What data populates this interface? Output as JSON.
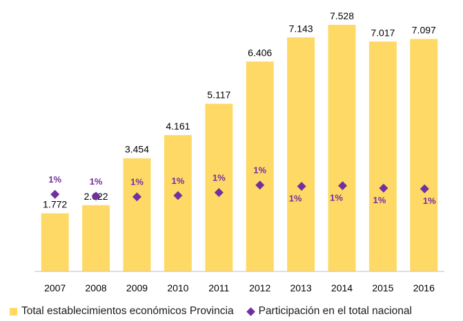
{
  "chart_data": {
    "type": "bar",
    "categories": [
      "2007",
      "2008",
      "2009",
      "2010",
      "2011",
      "2012",
      "2013",
      "2014",
      "2015",
      "2016"
    ],
    "series": [
      {
        "name": "Total establecimientos económicos Provincia",
        "type": "bar",
        "values": [
          1772,
          2022,
          3454,
          4161,
          5117,
          6406,
          7143,
          7528,
          7017,
          7097
        ],
        "labels": [
          "1.772",
          "2.022",
          "3.454",
          "4.161",
          "5.117",
          "6.406",
          "7.143",
          "7.528",
          "7.017",
          "7.097"
        ],
        "color": "#FFD966"
      },
      {
        "name": "Participación en el total nacional",
        "type": "scatter",
        "values": [
          0.0125,
          0.0122,
          0.0121,
          0.0123,
          0.0128,
          0.014,
          0.0138,
          0.0139,
          0.0135,
          0.0134
        ],
        "labels": [
          "1%",
          "1%",
          "1%",
          "1%",
          "1%",
          "1%",
          "1%",
          "1%",
          "1%",
          "1%"
        ],
        "label_position": [
          "above",
          "above",
          "above",
          "above",
          "above",
          "above",
          "below",
          "below",
          "below",
          "below"
        ],
        "color": "#7030A0"
      }
    ],
    "title": "",
    "xlabel": "",
    "ylabel": "",
    "ylim": [
      0,
      7528
    ],
    "y2lim": [
      0,
      0.04
    ],
    "grid": false,
    "legend": "bottom"
  }
}
